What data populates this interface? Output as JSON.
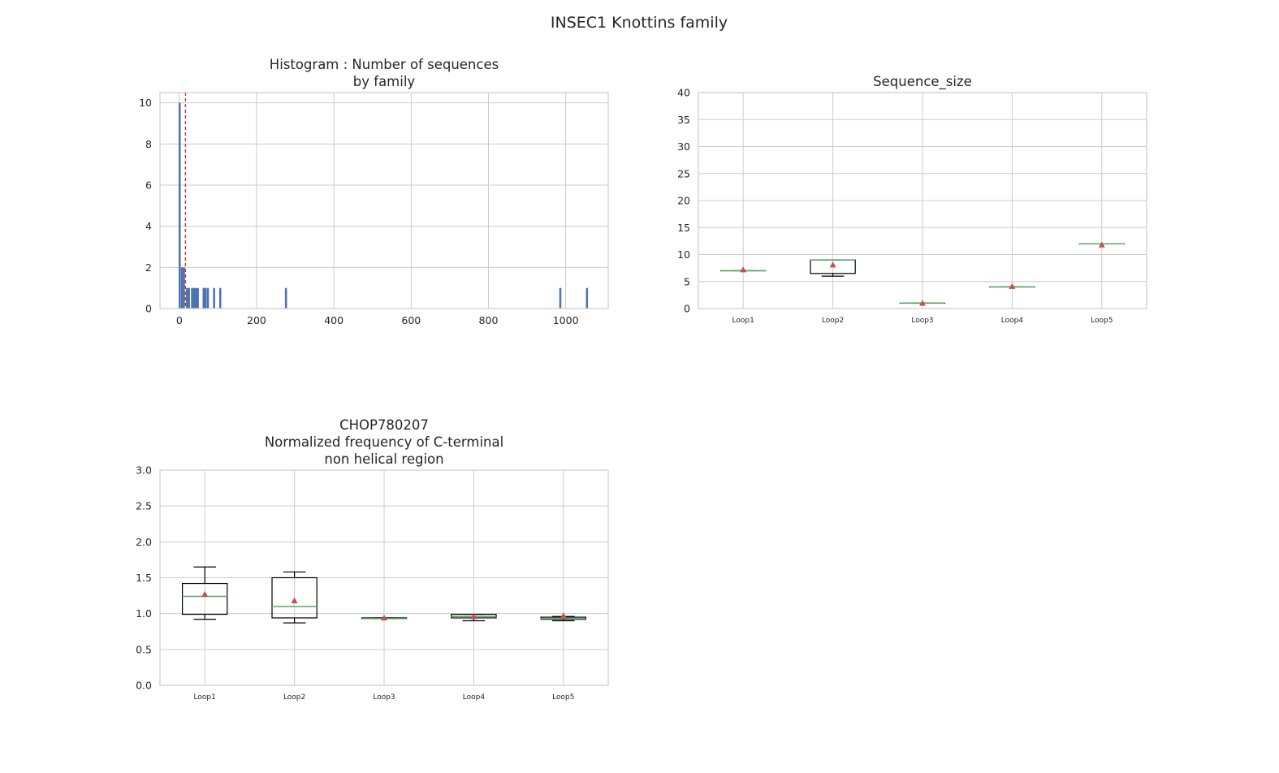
{
  "figure": {
    "suptitle": "INSEC1 Knottins family"
  },
  "colors": {
    "bar": "#4C72B0",
    "grid": "#cccccc",
    "mean_line": "#e0201b",
    "median": "#55a868",
    "mean_marker": "#c44e52",
    "box": "#000000"
  },
  "chart_data": [
    {
      "id": "histogram",
      "type": "bar",
      "title": "Histogram : Number of sequences\nby family",
      "xlabel": "",
      "ylabel": "",
      "xlim": [
        -50,
        1110
      ],
      "ylim": [
        0,
        10.5
      ],
      "xticks": [
        0,
        200,
        400,
        600,
        800,
        1000
      ],
      "yticks": [
        0,
        2,
        4,
        6,
        8,
        10
      ],
      "grid": true,
      "bin_width": 5.3,
      "bins": [
        {
          "x": 1,
          "count": 10
        },
        {
          "x": 7,
          "count": 2
        },
        {
          "x": 12,
          "count": 2
        },
        {
          "x": 20,
          "count": 1
        },
        {
          "x": 25,
          "count": 1
        },
        {
          "x": 33,
          "count": 1
        },
        {
          "x": 38,
          "count": 1
        },
        {
          "x": 43,
          "count": 1
        },
        {
          "x": 48,
          "count": 1
        },
        {
          "x": 63,
          "count": 1
        },
        {
          "x": 68,
          "count": 1
        },
        {
          "x": 74,
          "count": 1
        },
        {
          "x": 90,
          "count": 1
        },
        {
          "x": 106,
          "count": 1
        },
        {
          "x": 276,
          "count": 1
        },
        {
          "x": 986,
          "count": 1
        },
        {
          "x": 1055,
          "count": 1
        }
      ],
      "vline": {
        "x": 16,
        "style": "dashed"
      }
    },
    {
      "id": "sequence-size",
      "type": "box",
      "title": "Sequence_size",
      "xlabel": "",
      "ylabel": "",
      "ylim": [
        0,
        40
      ],
      "yticks": [
        0,
        5,
        10,
        15,
        20,
        25,
        30,
        35,
        40
      ],
      "grid": true,
      "categories": [
        "Loop1",
        "Loop2",
        "Loop3",
        "Loop4",
        "Loop5"
      ],
      "boxes": [
        {
          "whislo": 7,
          "q1": 7,
          "med": 7,
          "q3": 7,
          "whishi": 7,
          "mean": 7.2
        },
        {
          "whislo": 6,
          "q1": 6.5,
          "med": 9,
          "q3": 9,
          "whishi": 9,
          "mean": 8.1
        },
        {
          "whislo": 1,
          "q1": 1,
          "med": 1,
          "q3": 1,
          "whishi": 1,
          "mean": 1
        },
        {
          "whislo": 4,
          "q1": 4,
          "med": 4,
          "q3": 4,
          "whishi": 4,
          "mean": 4.1
        },
        {
          "whislo": 12,
          "q1": 12,
          "med": 12,
          "q3": 12,
          "whishi": 12,
          "mean": 11.8
        }
      ]
    },
    {
      "id": "chop780207",
      "type": "box",
      "title": "CHOP780207\nNormalized frequency of C-terminal\nnon helical region",
      "xlabel": "",
      "ylabel": "",
      "ylim": [
        0,
        3.0
      ],
      "yticks": [
        0.0,
        0.5,
        1.0,
        1.5,
        2.0,
        2.5,
        3.0
      ],
      "grid": true,
      "categories": [
        "Loop1",
        "Loop2",
        "Loop3",
        "Loop4",
        "Loop5"
      ],
      "boxes": [
        {
          "whislo": 0.92,
          "q1": 0.99,
          "med": 1.24,
          "q3": 1.42,
          "whishi": 1.65,
          "mean": 1.27
        },
        {
          "whislo": 0.87,
          "q1": 0.94,
          "med": 1.1,
          "q3": 1.5,
          "whishi": 1.58,
          "mean": 1.18
        },
        {
          "whislo": 0.93,
          "q1": 0.93,
          "med": 0.93,
          "q3": 0.94,
          "whishi": 0.94,
          "mean": 0.94
        },
        {
          "whislo": 0.9,
          "q1": 0.94,
          "med": 0.96,
          "q3": 0.99,
          "whishi": 0.99,
          "mean": 0.96
        },
        {
          "whislo": 0.9,
          "q1": 0.92,
          "med": 0.93,
          "q3": 0.95,
          "whishi": 0.96,
          "mean": 0.97
        }
      ]
    }
  ]
}
